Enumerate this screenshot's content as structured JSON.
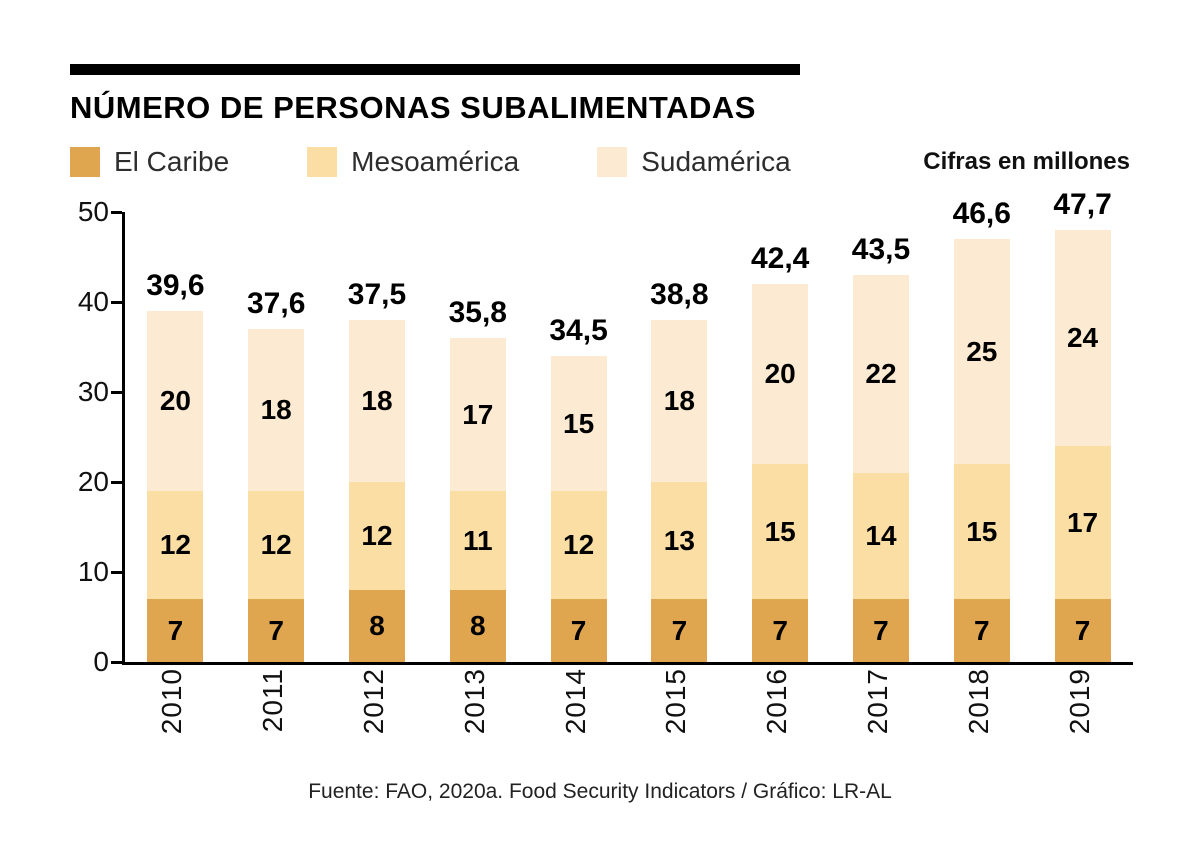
{
  "title": "NÚMERO DE PERSONAS SUBALIMENTADAS",
  "units_note": "Cifras en millones",
  "legend": [
    {
      "label": "El Caribe",
      "color": "#DFA64F"
    },
    {
      "label": "Mesoamérica",
      "color": "#FBDEA4"
    },
    {
      "label": "Sudamérica",
      "color": "#FCEBD2"
    }
  ],
  "footer": "Fuente: FAO, 2020a. Food Security Indicators / Gráfico: LR-AL",
  "chart_data": {
    "type": "bar",
    "stacked": true,
    "title": "NÚMERO DE PERSONAS SUBALIMENTADAS",
    "xlabel": "",
    "ylabel": "",
    "ylim": [
      0,
      50
    ],
    "yticks": [
      0,
      10,
      20,
      30,
      40,
      50
    ],
    "grid": false,
    "legend_position": "top",
    "categories": [
      "2010",
      "2011",
      "2012",
      "2013",
      "2014",
      "2015",
      "2016",
      "2017",
      "2018",
      "2019"
    ],
    "series": [
      {
        "name": "El Caribe",
        "color": "#DFA64F",
        "values": [
          7,
          7,
          8,
          8,
          7,
          7,
          7,
          7,
          7,
          7
        ]
      },
      {
        "name": "Mesoamérica",
        "color": "#FBDEA4",
        "values": [
          12,
          12,
          12,
          11,
          12,
          13,
          15,
          14,
          15,
          17
        ]
      },
      {
        "name": "Sudamérica",
        "color": "#FCEBD2",
        "values": [
          20,
          18,
          18,
          17,
          15,
          18,
          20,
          22,
          25,
          24
        ]
      }
    ],
    "totals": [
      "39,6",
      "37,6",
      "37,5",
      "35,8",
      "34,5",
      "38,8",
      "42,4",
      "43,5",
      "46,6",
      "47,7"
    ]
  }
}
